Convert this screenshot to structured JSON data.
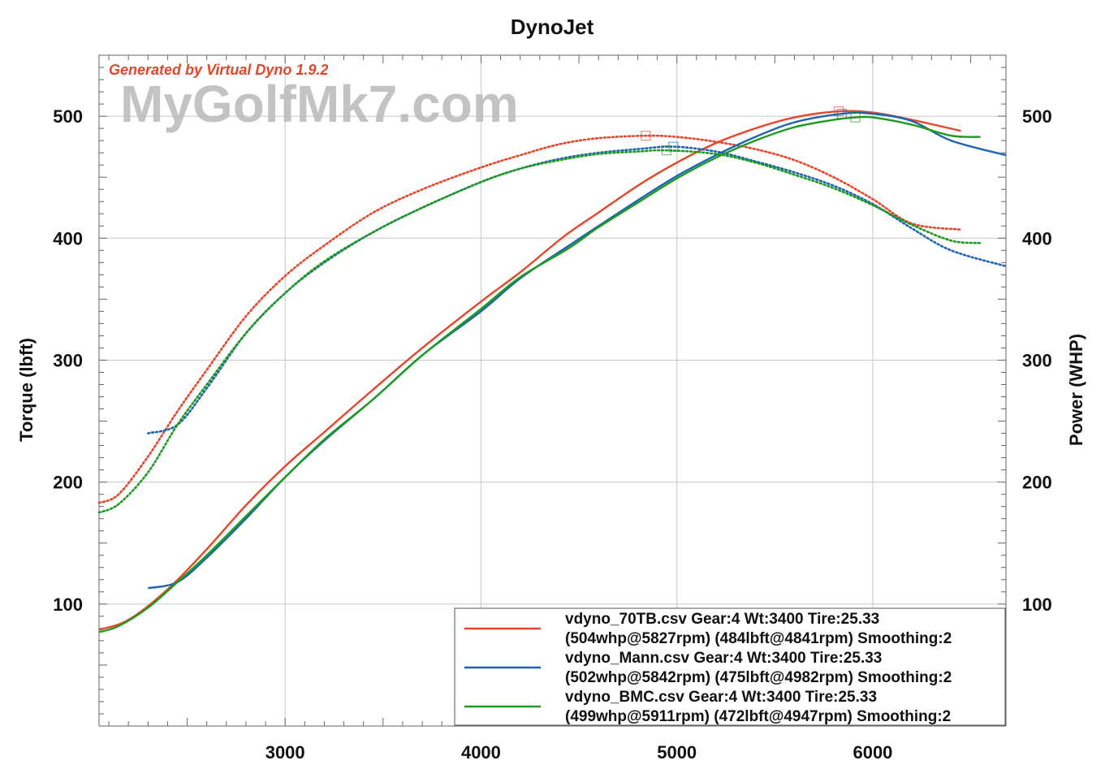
{
  "chart_data": {
    "type": "line",
    "title": "DynoJet",
    "generated_by": "Generated by Virtual Dyno 1.9.2",
    "watermark": "MyGolfMk7.com",
    "ylabel_left": "Torque (lbft)",
    "ylabel_right": "Power (WHP)",
    "xlim": [
      2050,
      6680
    ],
    "ylim": [
      0,
      550
    ],
    "x_ticks": [
      3000,
      4000,
      5000,
      6000
    ],
    "y_ticks": [
      100,
      200,
      300,
      400,
      500
    ],
    "grid": true,
    "legend_position": "bottom-right",
    "colors": {
      "red": "#e8452a",
      "blue": "#1f63b4",
      "green": "#1e9a1e",
      "generated": "#e8452a"
    },
    "series": [
      {
        "legend_line1": "vdyno_70TB.csv Gear:4 Wt:3400 Tire:25.33",
        "legend_line2": "(504whp@5827rpm) (484lbft@4841rpm) Smoothing:2",
        "color": "#e8452a",
        "power": {
          "x": [
            2050,
            2200,
            2400,
            2600,
            2800,
            3000,
            3200,
            3450,
            3700,
            4000,
            4200,
            4420,
            4600,
            4800,
            5000,
            5200,
            5400,
            5600,
            5827,
            6000,
            6200,
            6450
          ],
          "y": [
            79,
            87,
            112,
            145,
            181,
            213,
            241,
            276,
            310,
            348,
            372,
            401,
            421,
            443,
            462,
            478,
            490,
            499,
            504,
            503,
            497,
            488
          ]
        },
        "torque": {
          "x": [
            2050,
            2150,
            2300,
            2450,
            2600,
            2800,
            3000,
            3200,
            3450,
            3700,
            4000,
            4200,
            4400,
            4600,
            4841,
            5000,
            5200,
            5400,
            5600,
            5800,
            6000,
            6200,
            6450
          ],
          "y": [
            183,
            190,
            221,
            258,
            292,
            336,
            369,
            394,
            421,
            440,
            458,
            468,
            477,
            482,
            484,
            483,
            479,
            473,
            464,
            450,
            432,
            412,
            407
          ]
        },
        "markers": [
          [
            5827,
            504
          ],
          [
            4841,
            484
          ]
        ]
      },
      {
        "legend_line1": "vdyno_Mann.csv Gear:4 Wt:3400 Tire:25.33",
        "legend_line2": "(502whp@5842rpm) (475lbft@4982rpm) Smoothing:2",
        "color": "#1f63b4",
        "power": {
          "x": [
            2300,
            2450,
            2600,
            2800,
            3000,
            3200,
            3450,
            3700,
            4000,
            4200,
            4450,
            4600,
            4800,
            5000,
            5200,
            5400,
            5600,
            5842,
            6000,
            6200,
            6400,
            6680
          ],
          "y": [
            113,
            118,
            138,
            170,
            204,
            234,
            268,
            304,
            340,
            367,
            394,
            410,
            431,
            451,
            468,
            483,
            495,
            502,
            502,
            496,
            480,
            468
          ]
        },
        "torque": {
          "x": [
            2300,
            2450,
            2600,
            2800,
            3000,
            3200,
            3450,
            3700,
            4000,
            4200,
            4400,
            4600,
            4800,
            4982,
            5200,
            5400,
            5600,
            5800,
            6000,
            6200,
            6400,
            6680
          ],
          "y": [
            240,
            247,
            277,
            322,
            355,
            380,
            405,
            425,
            446,
            457,
            465,
            470,
            473,
            475,
            471,
            463,
            454,
            443,
            428,
            408,
            390,
            377
          ]
        },
        "markers": [
          [
            5842,
            502
          ],
          [
            4982,
            475
          ]
        ]
      },
      {
        "legend_line1": "vdyno_BMC.csv Gear:4 Wt:3400 Tire:25.33",
        "legend_line2": "(499whp@5911rpm) (472lbft@4947rpm) Smoothing:2",
        "color": "#1e9a1e",
        "power": {
          "x": [
            2050,
            2150,
            2300,
            2450,
            2600,
            2800,
            3000,
            3200,
            3450,
            3700,
            4000,
            4200,
            4450,
            4600,
            4800,
            5000,
            5200,
            5400,
            5600,
            5800,
            5911,
            6000,
            6200,
            6400,
            6550
          ],
          "y": [
            77,
            82,
            97,
            118,
            140,
            172,
            204,
            235,
            268,
            304,
            342,
            368,
            392,
            409,
            429,
            449,
            466,
            480,
            491,
            497,
            499,
            499,
            493,
            484,
            483
          ]
        },
        "torque": {
          "x": [
            2050,
            2150,
            2300,
            2450,
            2600,
            2800,
            3000,
            3200,
            3450,
            3700,
            4000,
            4200,
            4400,
            4600,
            4800,
            4947,
            5200,
            5400,
            5600,
            5800,
            6000,
            6200,
            6400,
            6550
          ],
          "y": [
            175,
            182,
            208,
            247,
            280,
            322,
            355,
            381,
            405,
            425,
            446,
            457,
            464,
            469,
            471,
            472,
            469,
            462,
            452,
            441,
            427,
            411,
            398,
            396
          ]
        },
        "markers": [
          [
            5911,
            499
          ],
          [
            4947,
            472
          ]
        ]
      }
    ]
  }
}
